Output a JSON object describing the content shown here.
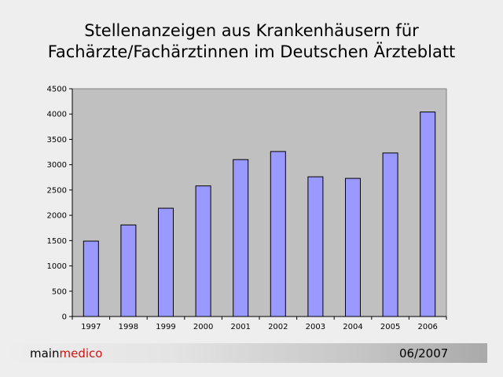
{
  "slide": {
    "title_line1": "Stellenanzeigen aus Krankenhäusern für",
    "title_line2": "Fachärzte/Fachärztinnen im Deutschen Ärzteblatt"
  },
  "chart_data": {
    "type": "bar",
    "categories": [
      "1997",
      "1998",
      "1999",
      "2000",
      "2001",
      "2002",
      "2003",
      "2004",
      "2005",
      "2006"
    ],
    "values": [
      1490,
      1810,
      2140,
      2580,
      3100,
      3260,
      2760,
      2730,
      3230,
      4040
    ],
    "ylim": [
      0,
      4500
    ],
    "yticks": [
      0,
      500,
      1000,
      1500,
      2000,
      2500,
      3000,
      3500,
      4000,
      4500
    ],
    "grid": false,
    "legend": "none",
    "colors": {
      "bar_fill": "#9999ff",
      "plot_background": "#c0c0c0"
    }
  },
  "footer": {
    "brand_main": "main",
    "brand_medico": "medico",
    "date": "06/2007",
    "brand_colors": {
      "main": "#000000",
      "medico": "#d01010"
    }
  }
}
